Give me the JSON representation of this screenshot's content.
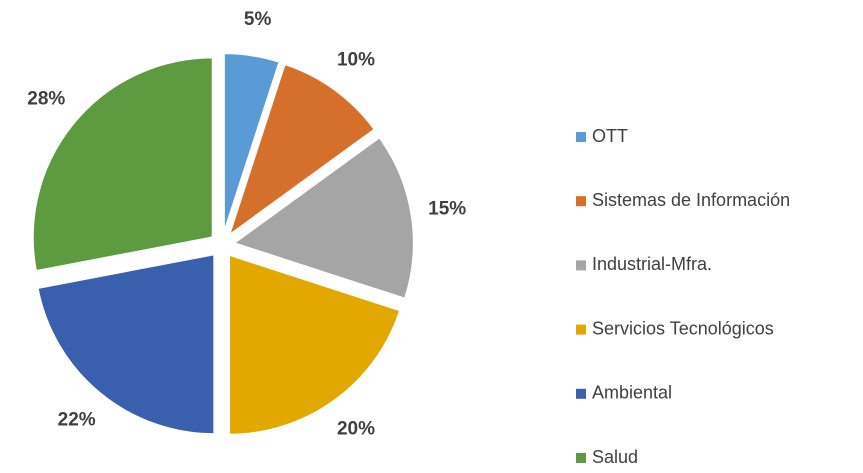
{
  "chart_data": {
    "type": "pie",
    "categories": [
      "OTT",
      "Sistemas de Información",
      "Industrial-Mfra.",
      "Servicios Tecnológicos",
      "Ambiental",
      "Salud"
    ],
    "values": [
      5,
      10,
      15,
      20,
      22,
      28
    ],
    "value_labels": [
      "5%",
      "10%",
      "15%",
      "20%",
      "22%",
      "28%"
    ],
    "colors": [
      "#5b9bd5",
      "#d4702c",
      "#a5a5a5",
      "#e3a800",
      "#3a5fad",
      "#5e9a3f"
    ],
    "legend": "right"
  }
}
